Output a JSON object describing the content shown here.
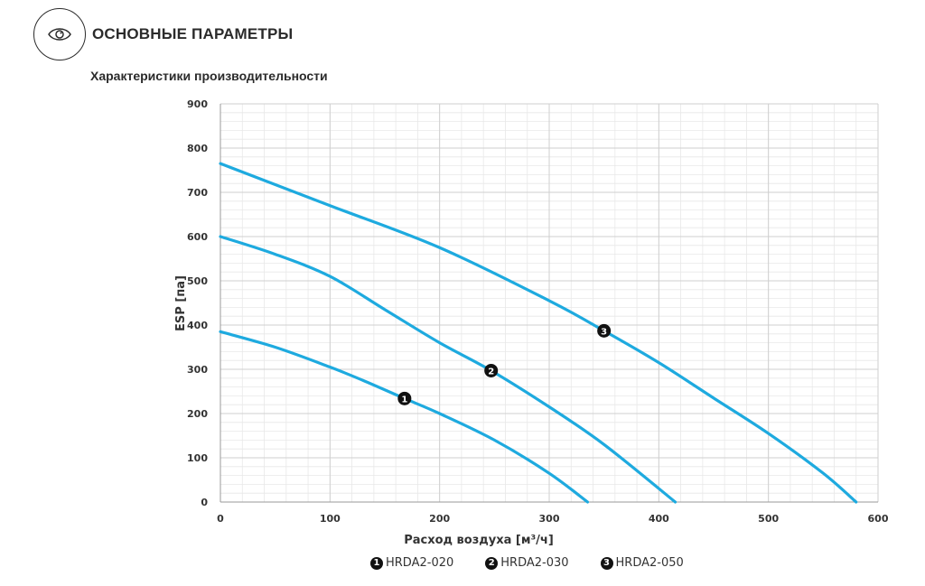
{
  "header": {
    "title": "ОСНОВНЫЕ ПАРАМЕТРЫ",
    "icon": "eye-icon"
  },
  "section_title": "Характеристики производительности",
  "chart_data": {
    "type": "line",
    "title": "",
    "xlabel": "Расход воздуха [м³/ч]",
    "ylabel": "ESP [па]",
    "xlim": [
      0,
      600
    ],
    "ylim": [
      0,
      900
    ],
    "x_ticks": [
      0,
      100,
      200,
      300,
      400,
      500,
      600
    ],
    "y_ticks": [
      0,
      100,
      200,
      300,
      400,
      500,
      600,
      700,
      800,
      900
    ],
    "grid": true,
    "line_color": "#1eaadf",
    "legend_position": "bottom",
    "series": [
      {
        "name": "HRDA2-020",
        "marker": "1",
        "marker_at": [
          168,
          234
        ],
        "x": [
          0,
          50,
          100,
          130,
          168,
          200,
          250,
          300,
          335
        ],
        "y": [
          385,
          350,
          305,
          275,
          234,
          200,
          140,
          65,
          0
        ]
      },
      {
        "name": "HRDA2-030",
        "marker": "2",
        "marker_at": [
          247,
          297
        ],
        "x": [
          0,
          50,
          100,
          150,
          200,
          247,
          300,
          350,
          415
        ],
        "y": [
          600,
          560,
          510,
          435,
          360,
          297,
          215,
          130,
          0
        ]
      },
      {
        "name": "HRDA2-050",
        "marker": "3",
        "marker_at": [
          350,
          387
        ],
        "x": [
          0,
          100,
          200,
          300,
          350,
          400,
          450,
          500,
          550,
          580
        ],
        "y": [
          765,
          670,
          575,
          455,
          387,
          315,
          235,
          155,
          65,
          0
        ]
      }
    ]
  }
}
